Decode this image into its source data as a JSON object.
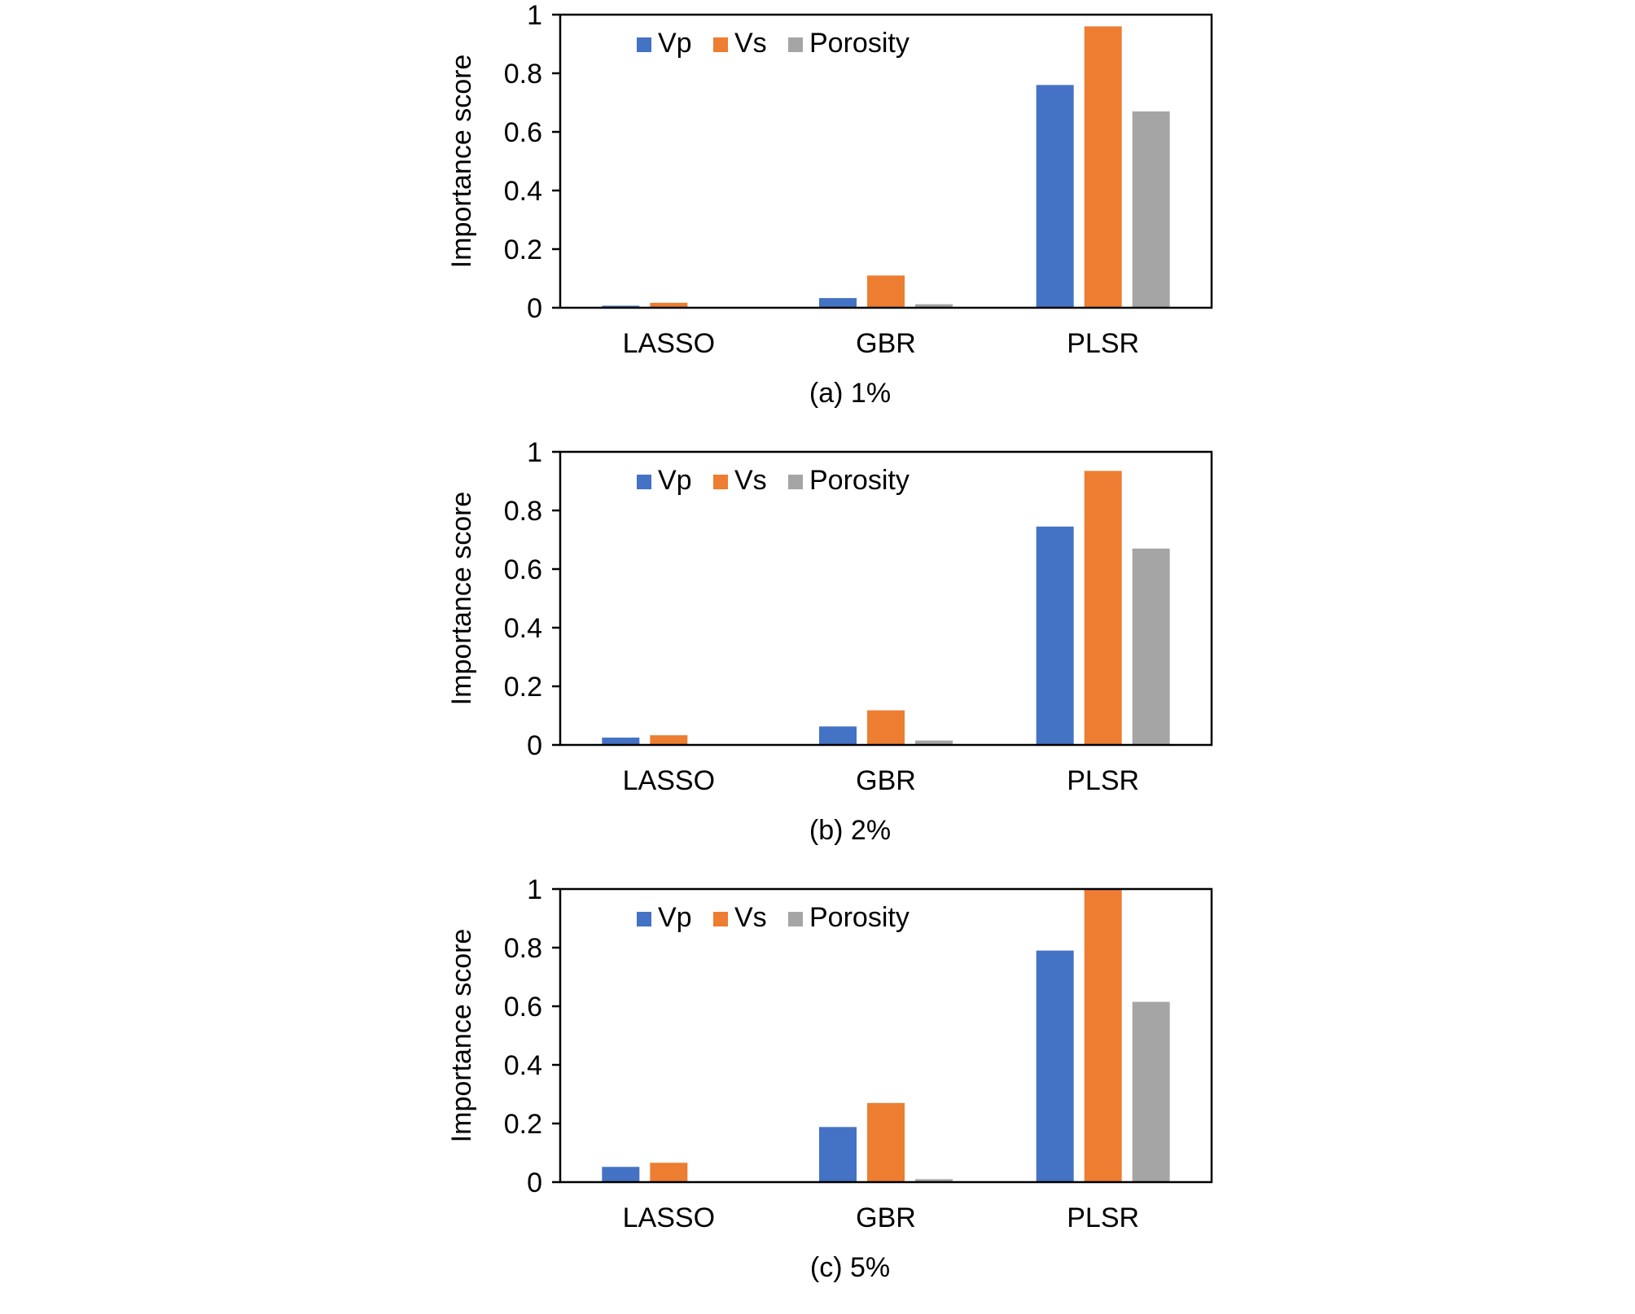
{
  "colors": {
    "Vp": "#4472C4",
    "Vs": "#ED7D31",
    "Porosity": "#A5A5A5",
    "axis": "#000000"
  },
  "chart_data": [
    {
      "type": "bar",
      "caption": "(a) 1%",
      "categories": [
        "LASSO",
        "GBR",
        "PLSR"
      ],
      "series": [
        {
          "name": "Vp",
          "values": [
            0.007,
            0.033,
            0.76
          ]
        },
        {
          "name": "Vs",
          "values": [
            0.017,
            0.11,
            0.96
          ]
        },
        {
          "name": "Porosity",
          "values": [
            0.0,
            0.012,
            0.67
          ]
        }
      ],
      "ylabel": "Importance score",
      "ylim": [
        0,
        1
      ],
      "yticks": [
        "0",
        "0.2",
        "0.4",
        "0.6",
        "0.8",
        "1"
      ],
      "legend": "top-left inside"
    },
    {
      "type": "bar",
      "caption": "(b) 2%",
      "categories": [
        "LASSO",
        "GBR",
        "PLSR"
      ],
      "series": [
        {
          "name": "Vp",
          "values": [
            0.025,
            0.063,
            0.745
          ]
        },
        {
          "name": "Vs",
          "values": [
            0.033,
            0.118,
            0.935
          ]
        },
        {
          "name": "Porosity",
          "values": [
            0.0,
            0.015,
            0.67
          ]
        }
      ],
      "ylabel": "Importance score",
      "ylim": [
        0,
        1
      ],
      "yticks": [
        "0",
        "0.2",
        "0.4",
        "0.6",
        "0.8",
        "1"
      ],
      "legend": "top-left inside"
    },
    {
      "type": "bar",
      "caption": "(c) 5%",
      "categories": [
        "LASSO",
        "GBR",
        "PLSR"
      ],
      "series": [
        {
          "name": "Vp",
          "values": [
            0.052,
            0.188,
            0.79
          ]
        },
        {
          "name": "Vs",
          "values": [
            0.066,
            0.27,
            1.0
          ]
        },
        {
          "name": "Porosity",
          "values": [
            0.0,
            0.01,
            0.615
          ]
        }
      ],
      "ylabel": "Importance score",
      "ylim": [
        0,
        1
      ],
      "yticks": [
        "0",
        "0.2",
        "0.4",
        "0.6",
        "0.8",
        "1"
      ],
      "legend": "top-left inside"
    }
  ]
}
